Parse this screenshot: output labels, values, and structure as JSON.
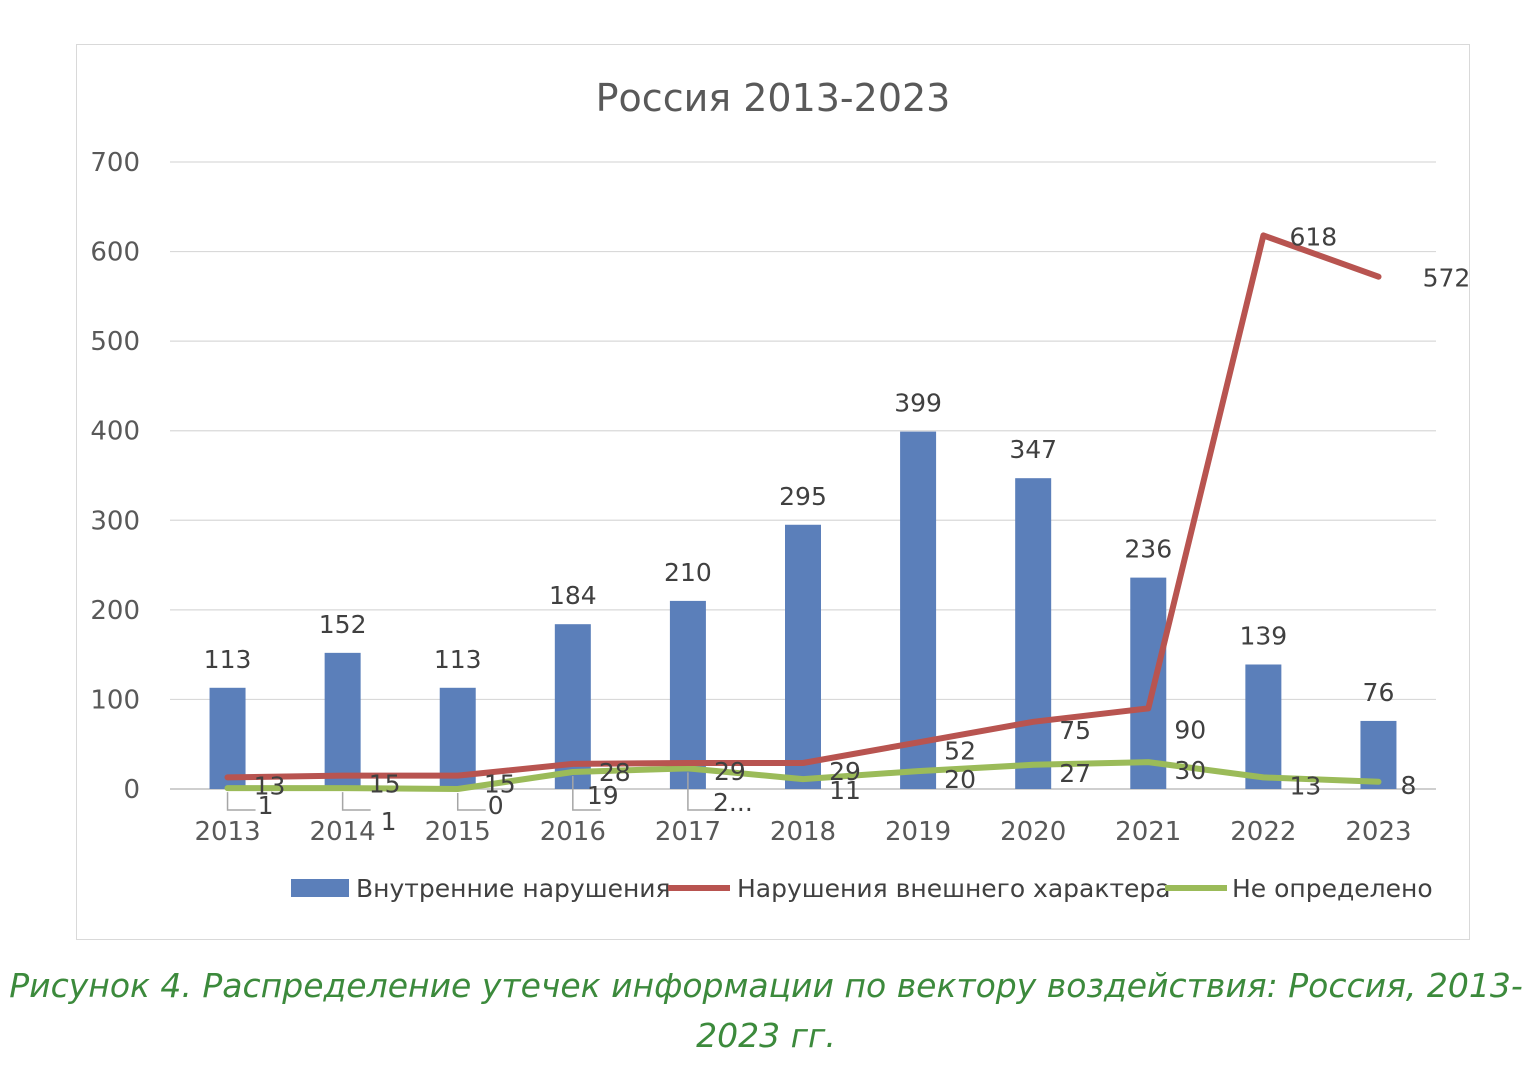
{
  "chart_data": {
    "type": "bar",
    "title": "Россия 2013-2023",
    "categories": [
      "2013",
      "2014",
      "2015",
      "2016",
      "2017",
      "2018",
      "2019",
      "2020",
      "2021",
      "2022",
      "2023"
    ],
    "ylim": [
      0,
      700
    ],
    "yticks": [
      0,
      100,
      200,
      300,
      400,
      500,
      600,
      700
    ],
    "grid": true,
    "legend_position": "bottom-right",
    "series": [
      {
        "name": "Внутренние нарушения",
        "type": "bar",
        "color": "#5b7fba",
        "values": [
          113,
          152,
          113,
          184,
          210,
          295,
          399,
          347,
          236,
          139,
          76
        ],
        "labels": [
          "113",
          "152",
          "113",
          "184",
          "210",
          "295",
          "399",
          "347",
          "236",
          "139",
          "76"
        ]
      },
      {
        "name": "Нарушения внешнего характера",
        "type": "line",
        "color": "#b85450",
        "values": [
          13,
          15,
          15,
          28,
          29,
          29,
          52,
          75,
          90,
          618,
          572
        ],
        "labels": [
          "13",
          "15",
          "15",
          "28",
          "29",
          "29",
          "52",
          "75",
          "90",
          "618",
          "572"
        ]
      },
      {
        "name": "Не определено",
        "type": "line",
        "color": "#9bbb59",
        "values": [
          1,
          1,
          0,
          19,
          23,
          11,
          20,
          27,
          30,
          13,
          8
        ],
        "labels": [
          "1",
          "1",
          "0",
          "19",
          "2...",
          "11",
          "20",
          "27",
          "30",
          "13",
          "8"
        ]
      }
    ]
  },
  "caption": {
    "line1": "Рисунок 4.  Распределение утечек информации по вектору воздействия: Россия, 2013-",
    "line2": "2023 гг."
  }
}
